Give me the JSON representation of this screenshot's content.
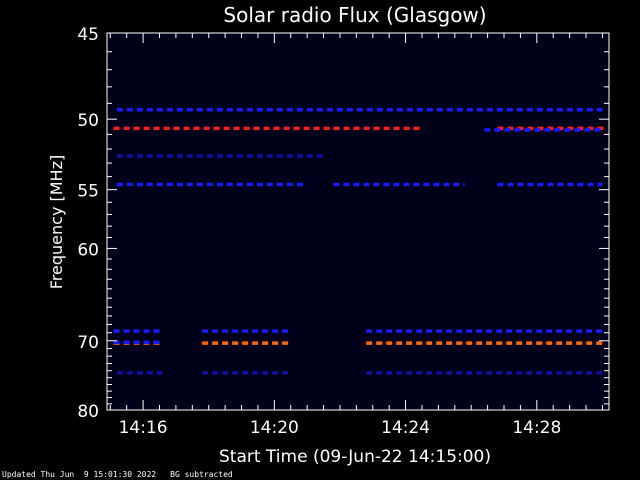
{
  "chart_data": {
    "type": "heatmap",
    "title": "Solar radio Flux (Glasgow)",
    "xlabel": "Start Time (09-Jun-22 14:15:00)",
    "ylabel": "Frequency [MHz]",
    "x_range_minutes": [
      14.9,
      30.2
    ],
    "y_range_mhz": [
      45,
      80
    ],
    "y_ticks": [
      45,
      50,
      55,
      60,
      70,
      80
    ],
    "y_tick_labels": [
      "45",
      "50",
      "55",
      "60",
      "70",
      "80"
    ],
    "x_ticks": [
      "14:16",
      "14:20",
      "14:24",
      "14:28"
    ],
    "x_tick_minutes": [
      16,
      20,
      24,
      28
    ],
    "background_color": "#00001a",
    "bands": [
      {
        "freq": 50.6,
        "color": "#ff2020",
        "segments": [
          [
            15.1,
            24.5
          ],
          [
            26.8,
            30.1
          ]
        ]
      },
      {
        "freq": 50.7,
        "color": "#1a1aff",
        "segments": [
          [
            26.4,
            30.0
          ]
        ]
      },
      {
        "freq": 49.4,
        "color": "#1a1aff",
        "segments": [
          [
            15.2,
            30.0
          ]
        ]
      },
      {
        "freq": 52.5,
        "color": "#1010a0",
        "segments": [
          [
            15.2,
            21.5
          ]
        ]
      },
      {
        "freq": 54.6,
        "color": "#1a1aff",
        "segments": [
          [
            15.2,
            21.0
          ],
          [
            21.8,
            25.8
          ],
          [
            26.8,
            30.0
          ]
        ]
      },
      {
        "freq": 68.8,
        "color": "#1a1aff",
        "segments": [
          [
            15.1,
            16.6
          ],
          [
            17.8,
            20.5
          ],
          [
            22.8,
            30.1
          ]
        ]
      },
      {
        "freq": 70.3,
        "color": "#ff6a10",
        "segments": [
          [
            15.1,
            16.6
          ],
          [
            17.8,
            20.5
          ],
          [
            22.8,
            30.1
          ]
        ]
      },
      {
        "freq": 70.2,
        "color": "#1a1aff",
        "segments": [
          [
            15.1,
            16.6
          ]
        ]
      },
      {
        "freq": 74.3,
        "color": "#1010a0",
        "segments": [
          [
            15.2,
            16.6
          ],
          [
            17.8,
            20.5
          ],
          [
            22.8,
            30.1
          ]
        ]
      }
    ]
  },
  "footer": {
    "updated": "Updated Thu Jun  9 15:01:30 2022",
    "note": "BG subtracted"
  }
}
